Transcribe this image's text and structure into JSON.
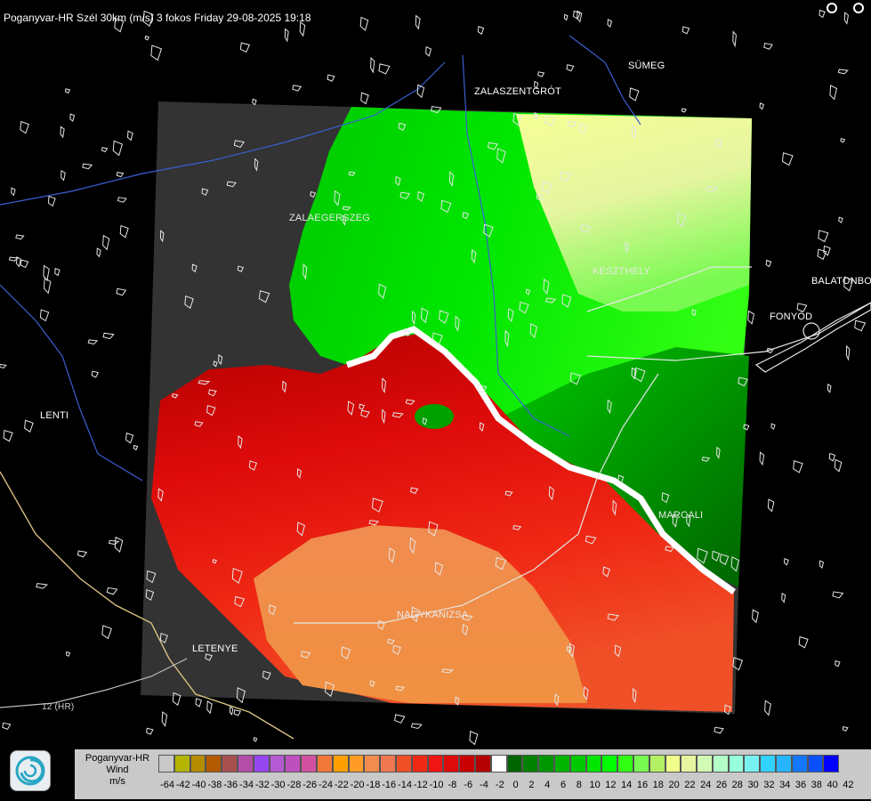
{
  "title": "Poganyvar-HR Szél 30km (m/s) 3 fokos Friday 29-08-2025 19:18",
  "cities": {
    "sumeg": "SÜMEG",
    "zalaszentgrot": "ZALASZENTGRÓT",
    "zalaegerszeg": "ZALAEGERSZEG",
    "keszthely": "KESZTHELY",
    "balatonbo": "BALATONBO",
    "fonyod": "FONYÓD",
    "lenti": "LENTI",
    "marcali": "MARCALI",
    "nagykanizsa": "NAGYKANIZSA",
    "letenye": "LETENYE",
    "road12": "12 (HR)"
  },
  "legend": {
    "station": "Poganyvar-HR",
    "field": "Wind",
    "unit": "m/s",
    "colors": [
      "#c8c8c8",
      "#b4b400",
      "#b48c00",
      "#b45a00",
      "#a85050",
      "#b24ea8",
      "#9646f0",
      "#b45ad2",
      "#be50be",
      "#d250a0",
      "#f07838",
      "#ffa000",
      "#ff9c28",
      "#f08c50",
      "#f07850",
      "#f05028",
      "#f02814",
      "#f01414",
      "#dc0a0a",
      "#c80000",
      "#b40000",
      "#ffffff",
      "#006400",
      "#008200",
      "#009600",
      "#00b400",
      "#00c800",
      "#00e600",
      "#00ff00",
      "#32ff14",
      "#78fa50",
      "#b4f064",
      "#f0ff8c",
      "#e6f5a0",
      "#d2fab4",
      "#b4ffc8",
      "#96ffdc",
      "#78f0f0",
      "#32d2ff",
      "#28b4ff",
      "#1478ff",
      "#0a50ff",
      "#0000ff"
    ],
    "ticks": [
      "-64",
      "-42",
      "-40",
      "-38",
      "-36",
      "-34",
      "-32",
      "-30",
      "-28",
      "-26",
      "-24",
      "-22",
      "-20",
      "-18",
      "-16",
      "-14",
      "-12",
      "-10",
      "-8",
      "-6",
      "-4",
      "-2",
      "0",
      "2",
      "4",
      "6",
      "8",
      "10",
      "12",
      "14",
      "16",
      "18",
      "20",
      "22",
      "24",
      "26",
      "28",
      "30",
      "32",
      "34",
      "36",
      "38",
      "40",
      "42"
    ]
  }
}
